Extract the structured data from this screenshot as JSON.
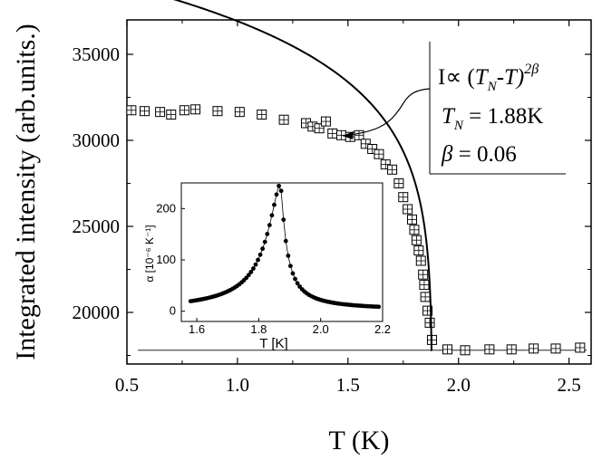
{
  "chart_data": [
    {
      "id": "main",
      "type": "scatter",
      "xlabel": "T (K)",
      "ylabel": "Integrated intensity (arb.units.)",
      "xlim": [
        0.5,
        2.6
      ],
      "ylim": [
        17000,
        37000
      ],
      "xticks": [
        0.5,
        1.0,
        1.5,
        2.0,
        2.5
      ],
      "xtick_labels": [
        "0.5",
        "1.0",
        "1.5",
        "2.0",
        "2.5"
      ],
      "yticks": [
        20000,
        25000,
        30000,
        35000
      ],
      "ytick_labels": [
        "20000",
        "25000",
        "30000",
        "35000"
      ],
      "series": [
        {
          "name": "data",
          "marker": "square-crosshair",
          "x": [
            0.52,
            0.58,
            0.65,
            0.7,
            0.76,
            0.81,
            0.91,
            1.01,
            1.11,
            1.21,
            1.31,
            1.34,
            1.37,
            1.4,
            1.43,
            1.47,
            1.51,
            1.55,
            1.58,
            1.61,
            1.64,
            1.67,
            1.7,
            1.73,
            1.75,
            1.77,
            1.79,
            1.8,
            1.81,
            1.82,
            1.83,
            1.84,
            1.845,
            1.85,
            1.86,
            1.87,
            1.88,
            1.95,
            2.03,
            2.14,
            2.24,
            2.34,
            2.44,
            2.55
          ],
          "y": [
            31750,
            31700,
            31650,
            31500,
            31750,
            31800,
            31700,
            31650,
            31500,
            31200,
            31000,
            30800,
            30700,
            31100,
            30400,
            30300,
            30200,
            30300,
            29800,
            29500,
            29200,
            28600,
            28300,
            27500,
            26700,
            26000,
            25400,
            24800,
            24200,
            23600,
            23000,
            22200,
            21600,
            20900,
            20100,
            19400,
            18400,
            17850,
            17800,
            17850,
            17850,
            17900,
            17900,
            17950
          ]
        },
        {
          "name": "fit",
          "type": "line",
          "formula": "A * (1.88 - T)^(2*0.06)",
          "A": 37500,
          "x_range": [
            0.52,
            1.88
          ]
        }
      ],
      "baseline": 17800,
      "annotation": {
        "formula_prefix": "I∝ (",
        "tn_letter": "T",
        "tn_sub": "N",
        "minus_t": "-T)",
        "exponent": "2β",
        "tn_eq": " = 1.88K",
        "beta_sym": "β",
        "beta_eq": " = 0.06"
      }
    },
    {
      "id": "inset",
      "type": "scatter",
      "xlabel": "T [K]",
      "ylabel": "α [10⁻⁶ K⁻¹]",
      "xlim": [
        1.55,
        2.2
      ],
      "ylim": [
        -20,
        250
      ],
      "xticks": [
        1.6,
        1.8,
        2.0,
        2.2
      ],
      "xtick_labels": [
        "1.6",
        "1.8",
        "2.0",
        "2.2"
      ],
      "yticks": [
        0,
        100,
        200
      ],
      "ytick_labels": [
        "0",
        "100",
        "200"
      ],
      "peak": {
        "T": 1.87,
        "alpha": 250
      },
      "background_alpha": 2
    }
  ]
}
